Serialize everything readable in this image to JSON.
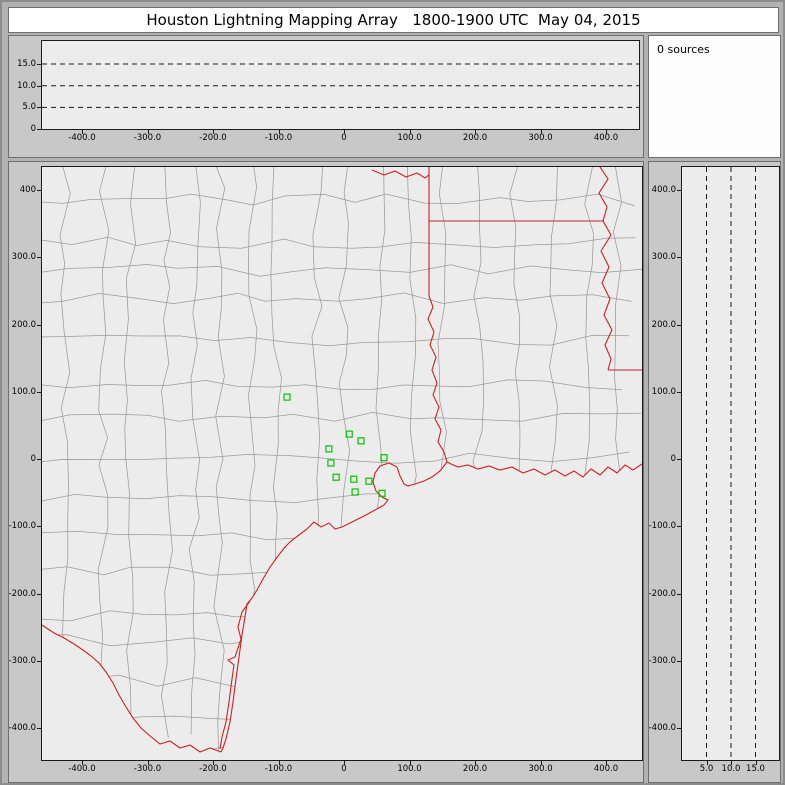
{
  "title": "Houston Lightning Mapping Array   1800-1900 UTC  May 04, 2015",
  "sources_label": "0 sources",
  "colors": {
    "border_red": "#cc2222",
    "county_gray": "#9a9a9a",
    "station_green": "#00c400",
    "plot_bg": "#ececec",
    "panel_bg": "#c8c8c8",
    "titlebar_bg": "#ffffff"
  },
  "axes": {
    "x_ticks": [
      {
        "label": "-400.0",
        "km": -400
      },
      {
        "label": "-300.0",
        "km": -300
      },
      {
        "label": "-200.0",
        "km": -200
      },
      {
        "label": "-100.0",
        "km": -100
      },
      {
        "label": "0",
        "km": 0
      },
      {
        "label": "100.0",
        "km": 100
      },
      {
        "label": "200.0",
        "km": 200
      },
      {
        "label": "300.0",
        "km": 300
      },
      {
        "label": "400.0",
        "km": 400
      }
    ],
    "y_ticks_main": [
      {
        "label": "400",
        "km": 400
      },
      {
        "label": "300.0",
        "km": 300
      },
      {
        "label": "200.0",
        "km": 200
      },
      {
        "label": "100.0",
        "km": 100
      },
      {
        "label": "0",
        "km": 0
      },
      {
        "label": "-100.0",
        "km": -100
      },
      {
        "label": "-200.0",
        "km": -200
      },
      {
        "label": "-300.0",
        "km": -300
      },
      {
        "label": "-400.0",
        "km": -400
      }
    ],
    "y_ticks_right": [
      {
        "label": "400.0",
        "km": 400
      },
      {
        "label": "300.0",
        "km": 300
      },
      {
        "label": "200.0",
        "km": 200
      },
      {
        "label": "100.0",
        "km": 100
      },
      {
        "label": "0",
        "km": 0
      },
      {
        "label": "-100.0",
        "km": -100
      },
      {
        "label": "-200.0",
        "km": -200
      },
      {
        "label": "-300.0",
        "km": -300
      },
      {
        "label": "-400.0",
        "km": -400
      }
    ],
    "alt_ticks_left": [
      {
        "label": "15.0",
        "km": 15
      },
      {
        "label": "10.0",
        "km": 10
      },
      {
        "label": "5.0",
        "km": 5
      },
      {
        "label": "0",
        "km": 0
      }
    ],
    "alt_ticks_bottom": [
      {
        "label": "5.0",
        "km": 5
      },
      {
        "label": "10.0",
        "km": 10
      },
      {
        "label": "15.0",
        "km": 15
      }
    ],
    "alt_gridlines_km": [
      5,
      10,
      15
    ]
  },
  "chart_data": {
    "type": "scatter",
    "title": "Houston Lightning Mapping Array   1800-1900 UTC  May 04, 2015",
    "time_range_utc": "1800-1900",
    "date": "May 04, 2015",
    "source_count": 0,
    "panels": {
      "top": {
        "name": "altitude vs east-west distance (km)",
        "x_range_km": [
          -461,
          453
        ],
        "alt_range_km": [
          0,
          20
        ],
        "alt_gridlines_km": [
          5,
          10,
          15
        ],
        "points": []
      },
      "main": {
        "name": "plan view map centered on Houston",
        "x_range_km": [
          -461,
          453
        ],
        "y_range_km": [
          -446,
          434
        ],
        "features": [
          "county boundaries (gray)",
          "state borders, rivers and gulf coastline (red)"
        ],
        "stations_km": [
          [
            -87,
            92
          ],
          [
            8,
            37
          ],
          [
            26,
            27
          ],
          [
            -23,
            15
          ],
          [
            61,
            2
          ],
          [
            -20,
            -6
          ],
          [
            -12,
            -27
          ],
          [
            15,
            -30
          ],
          [
            38,
            -33
          ],
          [
            17,
            -49
          ],
          [
            58,
            -51
          ]
        ]
      },
      "right": {
        "name": "altitude vs north-south distance (km)",
        "alt_range_km": [
          0,
          20
        ],
        "alt_gridlines_km": [
          5,
          10,
          15
        ],
        "y_range_km": [
          -446,
          434
        ],
        "points": []
      }
    }
  }
}
